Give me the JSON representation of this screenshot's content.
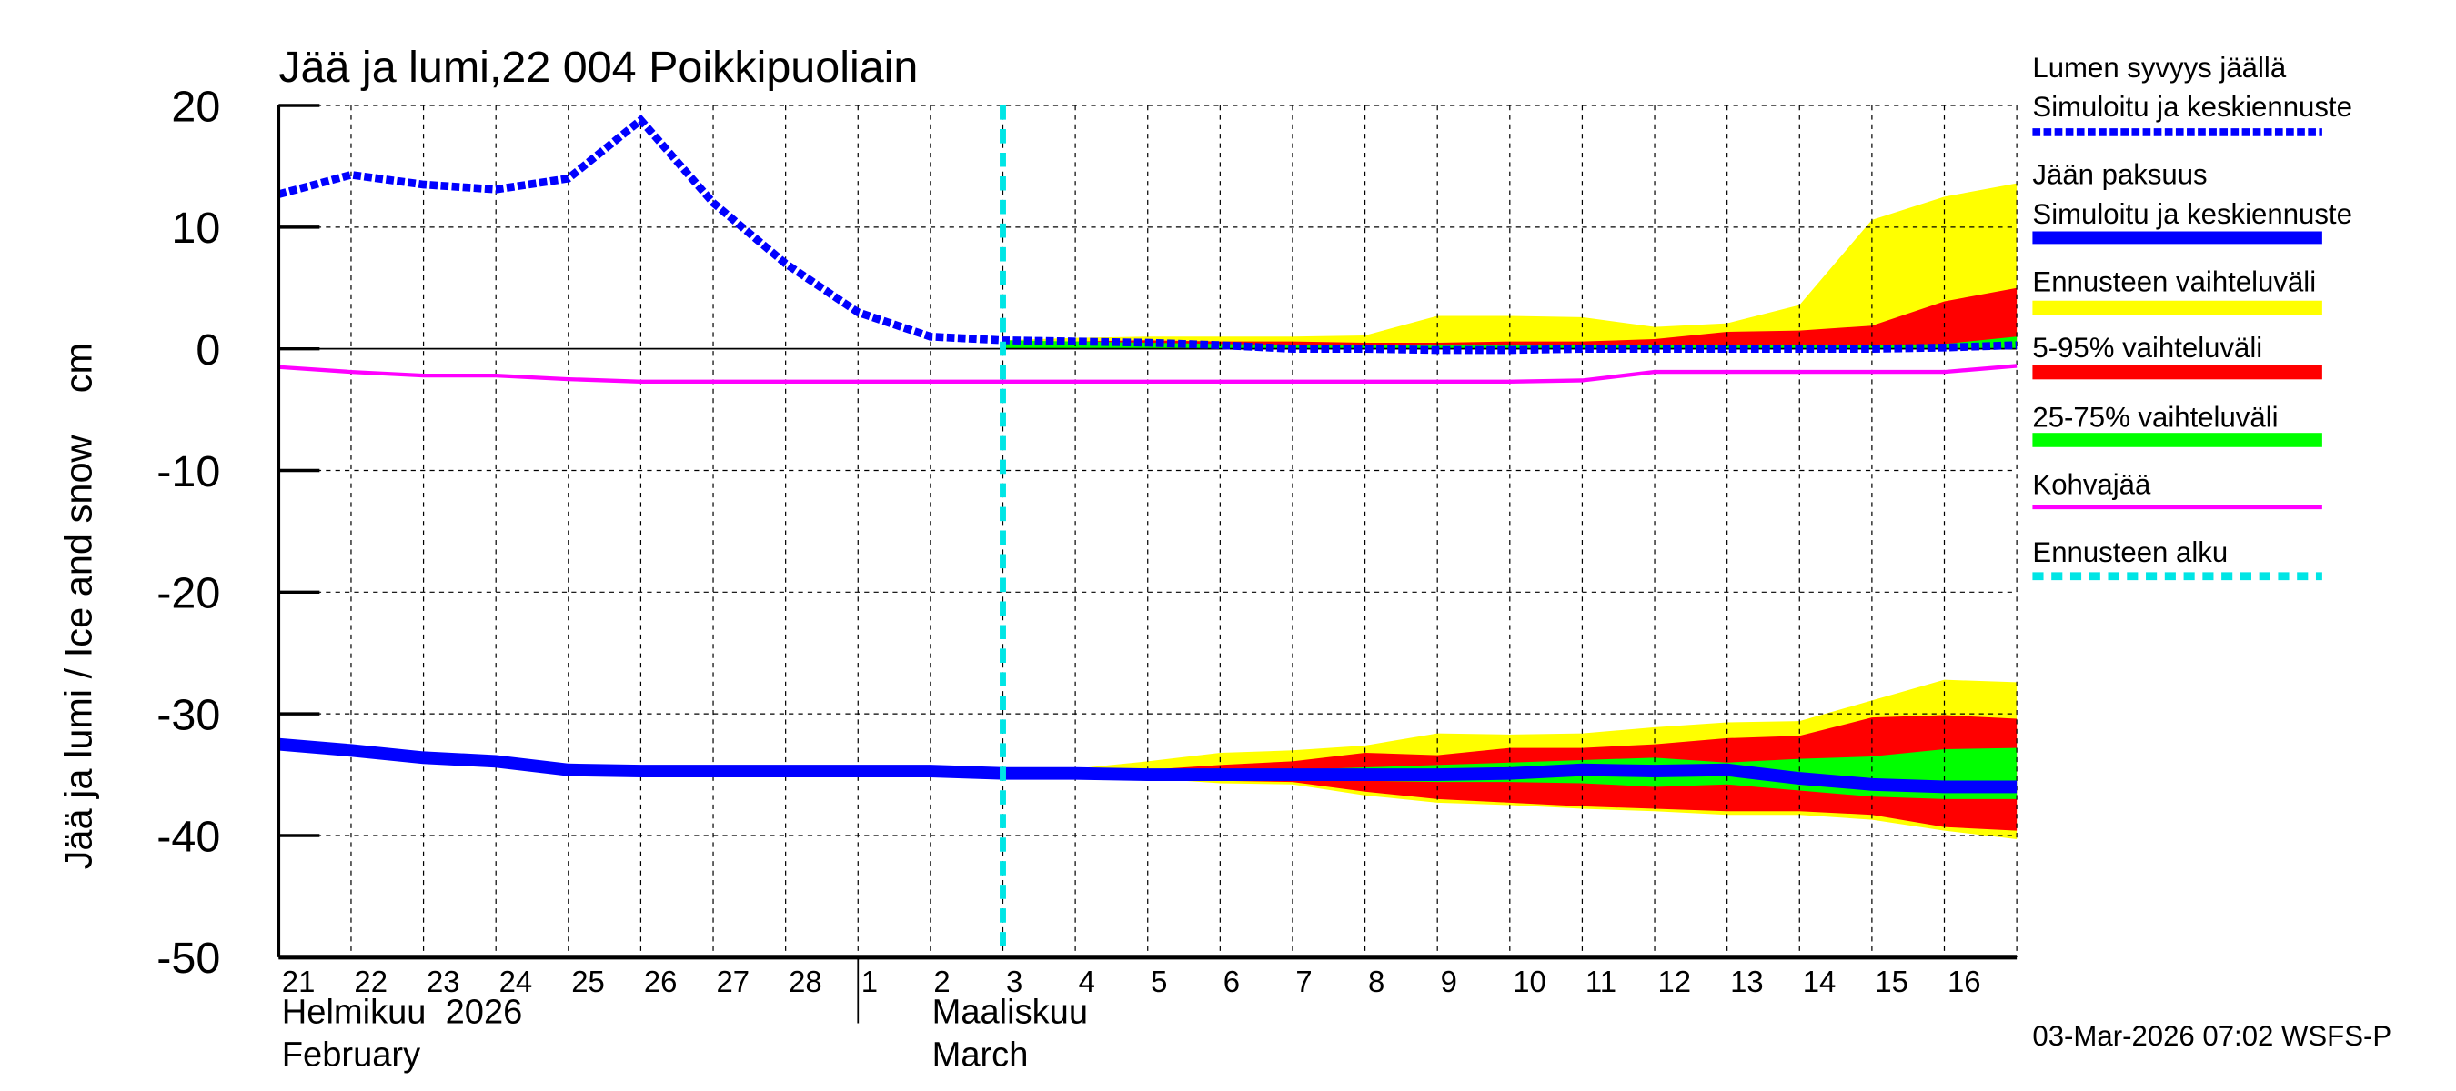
{
  "chart_data": {
    "type": "area",
    "title": "Jää ja lumi,22 004 Poikkipuoliain",
    "ylabel": "Jää ja lumi / Ice and snow    cm",
    "ylim": [
      -50,
      20
    ],
    "yticks": [
      20,
      10,
      0,
      -10,
      -20,
      -30,
      -40,
      -50
    ],
    "grid": true,
    "legend_position": "right",
    "x_tick_labels": [
      "21",
      "22",
      "23",
      "24",
      "25",
      "26",
      "27",
      "28",
      "1",
      "2",
      "3",
      "4",
      "5",
      "6",
      "7",
      "8",
      "9",
      "10",
      "11",
      "12",
      "13",
      "14",
      "15",
      "16"
    ],
    "month_labels": [
      {
        "fi": "Helmikuu  2026",
        "en": "February"
      },
      {
        "fi": "Maaliskuu",
        "en": "March"
      }
    ],
    "forecast_start_index": 10,
    "footer": "03-Mar-2026 07:02 WSFS-P",
    "legend": {
      "snow_title": "Lumen syvyys jäällä",
      "snow_series": "Simuloitu ja keskiennuste",
      "ice_title": "Jään paksuus",
      "ice_series": "Simuloitu ja keskiennuste",
      "range": "Ennusteen vaihteluväli",
      "p5_95": "5-95% vaihteluväli",
      "p25_75": "25-75% vaihteluväli",
      "slush": "Kohvajää",
      "forecast_start": "Ennusteen alku"
    },
    "colors": {
      "snow": "#0000ff",
      "ice": "#0000ff",
      "range": "#ffff00",
      "p5_95": "#ff0000",
      "p25_75": "#00ff00",
      "slush": "#ff00ff",
      "forecast_start": "#00e5e5"
    },
    "series": {
      "snow_depth": [
        12.7,
        14.3,
        13.5,
        13.1,
        14.0,
        18.8,
        12.0,
        7.0,
        3.0,
        1.0,
        0.7,
        0.6,
        0.5,
        0.3,
        0.0,
        0.0,
        -0.1,
        -0.1,
        0.0,
        0.0,
        0.0,
        0.0,
        0.0,
        0.1,
        0.3
      ],
      "ice_thickness": [
        -32.5,
        -33.0,
        -33.6,
        -33.9,
        -34.6,
        -34.7,
        -34.7,
        -34.7,
        -34.7,
        -34.7,
        -34.9,
        -34.9,
        -35.0,
        -35.0,
        -35.0,
        -35.0,
        -35.0,
        -34.9,
        -34.6,
        -34.7,
        -34.6,
        -35.3,
        -35.8,
        -36.0,
        -36.0
      ],
      "slush_ice": [
        -1.5,
        -1.9,
        -2.2,
        -2.2,
        -2.5,
        -2.7,
        -2.7,
        -2.7,
        -2.7,
        -2.7,
        -2.7,
        -2.7,
        -2.7,
        -2.7,
        -2.7,
        -2.7,
        -2.7,
        -2.7,
        -2.6,
        -1.9,
        -1.9,
        -1.9,
        -1.9,
        -1.9,
        -1.4
      ],
      "snow_bands": {
        "range_upper": [
          0.7,
          0.9,
          1.0,
          1.0,
          1.0,
          1.1,
          2.7,
          2.7,
          2.6,
          1.8,
          2.1,
          3.6,
          10.6,
          12.5,
          13.6
        ],
        "p5_95_upper": [
          0.5,
          0.6,
          0.7,
          0.6,
          0.6,
          0.5,
          0.5,
          0.6,
          0.6,
          0.8,
          1.4,
          1.5,
          1.9,
          3.9,
          5.0
        ],
        "p25_75_upper": [
          0.7,
          0.6,
          0.5,
          0.4,
          0.3,
          0.3,
          0.3,
          0.3,
          0.3,
          0.3,
          0.3,
          0.3,
          0.3,
          0.4,
          1.0
        ],
        "lower": [
          0,
          0,
          0,
          0,
          0,
          0,
          0,
          0,
          0,
          0,
          0,
          0,
          0,
          0,
          0
        ]
      },
      "ice_bands": {
        "range_upper": [
          -34.8,
          -34.5,
          -33.9,
          -33.2,
          -33.0,
          -32.6,
          -31.6,
          -31.7,
          -31.6,
          -31.1,
          -30.7,
          -30.6,
          -28.9,
          -27.2,
          -27.4
        ],
        "p5_95_upper": [
          -34.8,
          -34.7,
          -34.6,
          -34.2,
          -33.9,
          -33.2,
          -33.4,
          -32.8,
          -32.8,
          -32.5,
          -32.0,
          -31.8,
          -30.3,
          -30.1,
          -30.4
        ],
        "p25_75_upper": [
          -34.9,
          -34.9,
          -34.9,
          -34.8,
          -34.6,
          -34.4,
          -34.2,
          -34.0,
          -33.8,
          -33.6,
          -34.0,
          -33.7,
          -33.5,
          -32.9,
          -32.8
        ],
        "p25_75_lower": [
          -34.9,
          -35.0,
          -35.0,
          -35.1,
          -35.3,
          -35.5,
          -35.6,
          -35.6,
          -35.7,
          -36.0,
          -35.8,
          -36.3,
          -36.8,
          -37.0,
          -37.0
        ],
        "p5_95_lower": [
          -34.9,
          -35.1,
          -35.2,
          -35.5,
          -35.6,
          -36.4,
          -37.0,
          -37.3,
          -37.6,
          -37.8,
          -38.0,
          -38.0,
          -38.3,
          -39.3,
          -39.6
        ],
        "range_lower": [
          -34.9,
          -35.1,
          -35.3,
          -35.7,
          -35.8,
          -36.7,
          -37.3,
          -37.5,
          -37.8,
          -38.0,
          -38.3,
          -38.3,
          -38.7,
          -39.6,
          -40.3
        ]
      }
    }
  }
}
